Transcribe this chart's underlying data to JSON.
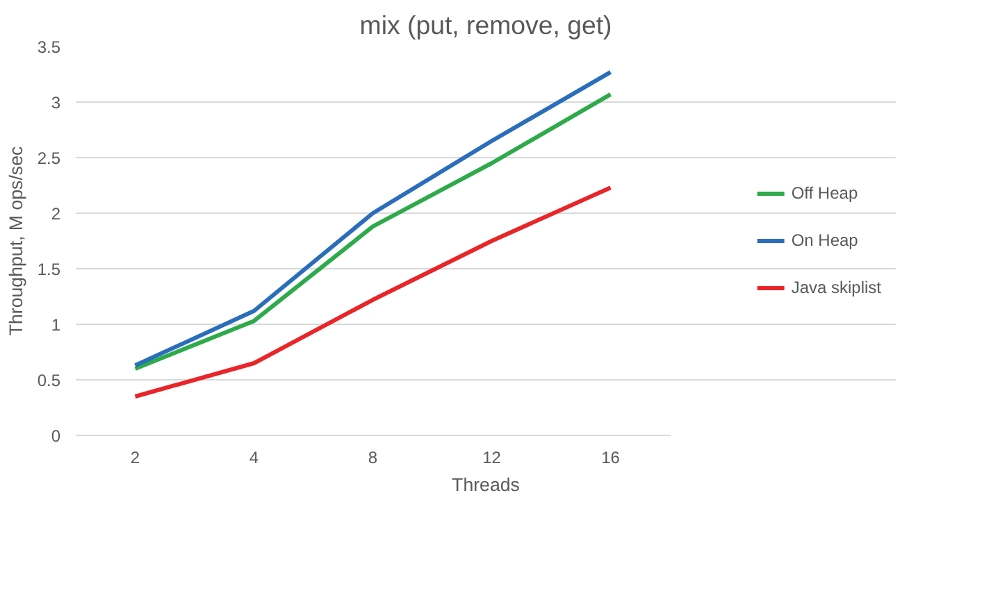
{
  "chart_data": {
    "type": "line",
    "title": "mix (put, remove, get)",
    "xlabel": "Threads",
    "ylabel": "Throughput, M ops/sec",
    "categories": [
      "2",
      "4",
      "8",
      "12",
      "16"
    ],
    "series": [
      {
        "name": "Off Heap",
        "color": "#2eaa4a",
        "values": [
          0.6,
          1.03,
          1.88,
          2.45,
          3.07
        ]
      },
      {
        "name": "On Heap",
        "color": "#2a6ebb",
        "values": [
          0.63,
          1.12,
          2.0,
          2.65,
          3.27
        ]
      },
      {
        "name": "Java skiplist",
        "color": "#e8262a",
        "values": [
          0.35,
          0.65,
          1.22,
          1.75,
          2.23
        ]
      }
    ],
    "ylim": [
      0,
      3.5
    ],
    "yticks": [
      0,
      0.5,
      1,
      1.5,
      2,
      2.5,
      3,
      3.5
    ],
    "grid": "y",
    "legend": "right"
  }
}
